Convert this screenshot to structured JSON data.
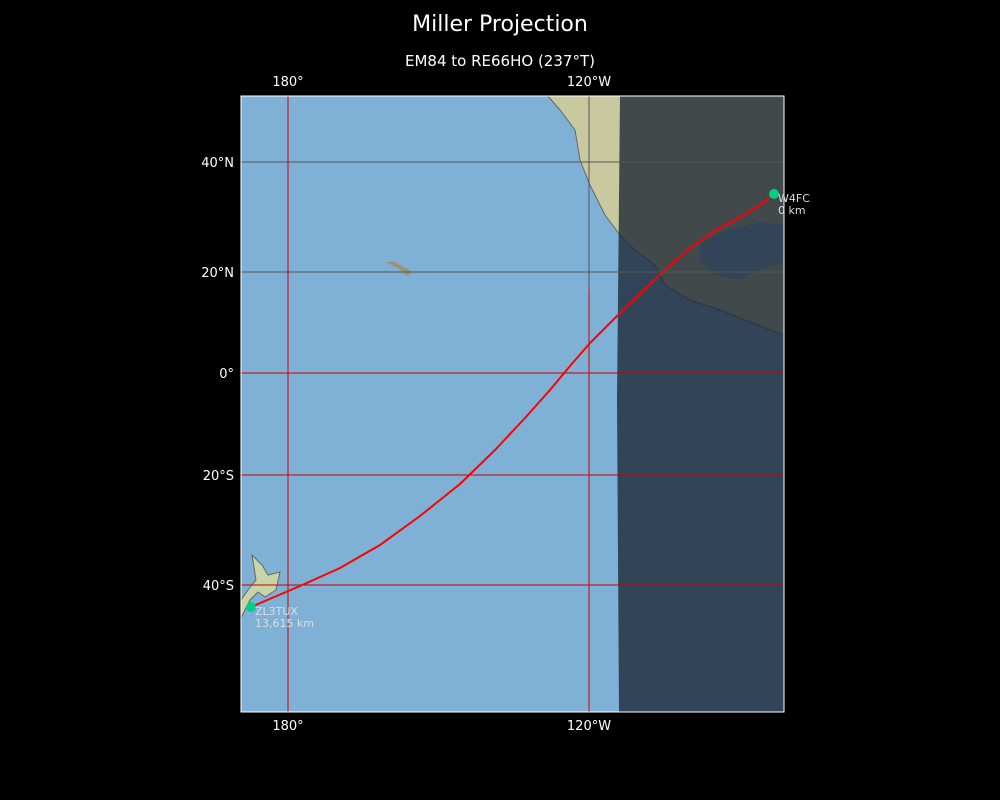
{
  "title": "Miller Projection",
  "subtitle": "EM84 to RE66HO (237°T)",
  "axes": {
    "lon_ticks": [
      "180°",
      "120°W"
    ],
    "lat_ticks": [
      "40°N",
      "20°N",
      "0°",
      "20°S",
      "40°S"
    ]
  },
  "stations": [
    {
      "call": "W4FC",
      "distance": "0 km"
    },
    {
      "call": "ZL3TUX",
      "distance": "13,615 km"
    }
  ],
  "colors": {
    "ocean": "#7fb0d6",
    "land": "#c9d3a8",
    "night": "#2e3a48",
    "path": "#ff0000",
    "grid": "#cc0000",
    "station": "#00d084"
  }
}
